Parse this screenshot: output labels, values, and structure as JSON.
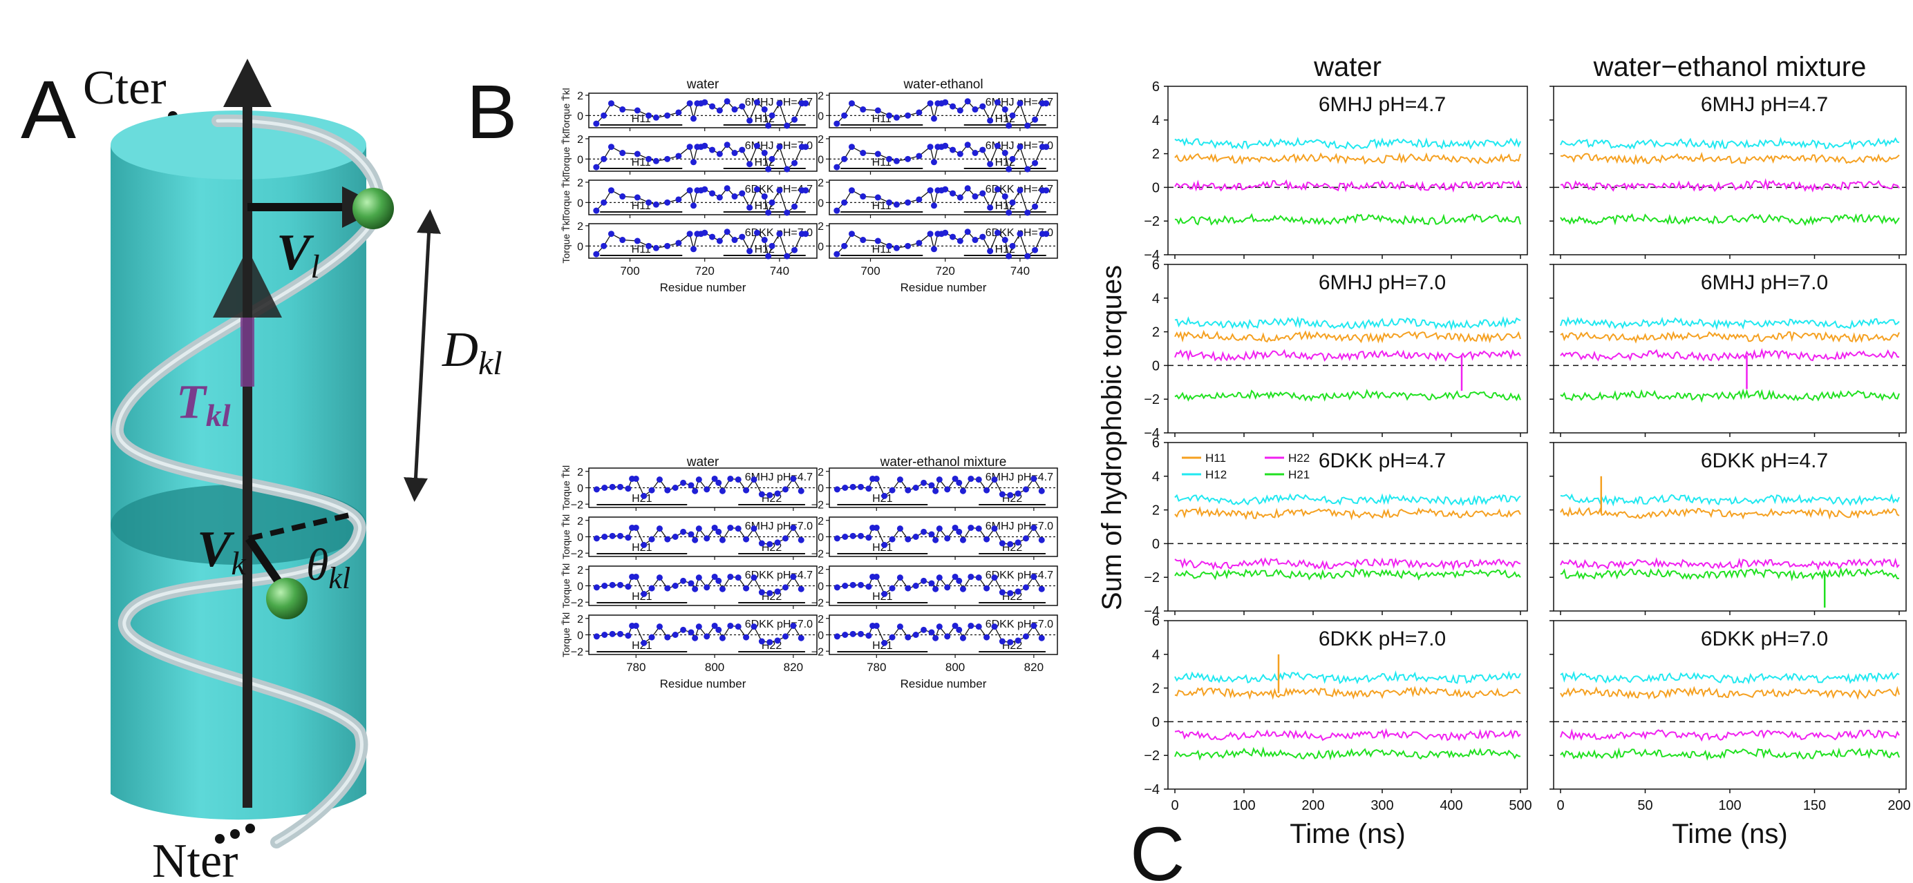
{
  "panel_labels": {
    "a": "A",
    "b": "B",
    "c": "C"
  },
  "helix": {
    "cter": "Cter",
    "nter": "Nter",
    "vl": "V",
    "vl_sub": "l",
    "vk": "V",
    "vk_sub": "k",
    "tkl": "T",
    "tkl_sub": "kl",
    "dkl": "D",
    "dkl_sub": "kl",
    "theta": "θ",
    "theta_sub": "kl",
    "colors": {
      "cylinder": "#45c8c8",
      "cylinder_dark": "#2aa4a4",
      "axis": "#222222",
      "torque": "#7a3c8c",
      "atom": "#3f9a3f",
      "ribbon": "#c9d6da"
    }
  },
  "panel_b": {
    "top": {
      "col_titles": [
        "water",
        "water-ethanol"
      ],
      "ylabel": "Torque T̄kl",
      "xlabel": "Residue number",
      "xticks": [
        "700",
        "720",
        "740"
      ],
      "yticks": [
        "2",
        "0"
      ],
      "helix_labels": [
        "H11",
        "H12"
      ],
      "rows": [
        "6MHJ pH=4.7",
        "6MHJ pH=7.0",
        "6DKK pH=4.7",
        "6DKK pH=7.0"
      ]
    },
    "bottom": {
      "col_titles": [
        "water",
        "water-ethanol mixture"
      ],
      "ylabel": "Torque T̄kl",
      "xlabel": "Residue number",
      "xticks": [
        "780",
        "800",
        "820"
      ],
      "yticks": [
        "2",
        "0",
        "−2"
      ],
      "helix_labels": [
        "H21",
        "H22"
      ],
      "rows": [
        "6MHJ pH=4.7",
        "6MHJ pH=7.0",
        "6DKK pH=4.7",
        "6DKK pH=7.0"
      ]
    },
    "marker_color": "#1f1fd6"
  },
  "chart_data": [
    {
      "type": "line",
      "panel": "B-top",
      "xlabel": "Residue number",
      "ylabel": "Torque T̄kl",
      "xlim": [
        689,
        750
      ],
      "ylim": [
        -1.2,
        2.2
      ],
      "x": [
        691,
        693,
        695,
        698,
        702,
        705,
        707,
        710,
        713,
        716,
        717,
        718,
        719,
        720,
        722,
        724,
        726,
        728,
        730,
        732,
        734,
        736,
        737,
        738,
        740,
        742,
        744,
        746,
        747
      ],
      "values": [
        -0.8,
        0.0,
        1.2,
        0.6,
        0.5,
        0.0,
        -0.2,
        0.0,
        0.3,
        1.2,
        -0.3,
        1.2,
        1.2,
        1.3,
        0.9,
        0.5,
        1.4,
        0.6,
        0.9,
        -0.5,
        1.3,
        0.6,
        -1.0,
        0.0,
        1.2,
        -1.0,
        -0.4,
        1.2,
        1.2
      ],
      "segments": [
        {
          "name": "H11",
          "x": [
            692,
            714
          ]
        },
        {
          "name": "H12",
          "x": [
            725,
            747
          ]
        }
      ],
      "panels": [
        [
          "water",
          "6MHJ pH=4.7"
        ],
        [
          "water-ethanol",
          "6MHJ pH=4.7"
        ],
        [
          "water",
          "6MHJ pH=7.0"
        ],
        [
          "water-ethanol",
          "6MHJ pH=7.0"
        ],
        [
          "water",
          "6DKK pH=4.7"
        ],
        [
          "water-ethanol",
          "6DKK pH=4.7"
        ],
        [
          "water",
          "6DKK pH=7.0"
        ],
        [
          "water-ethanol",
          "6DKK pH=7.0"
        ]
      ]
    },
    {
      "type": "line",
      "panel": "B-bottom",
      "xlabel": "Residue number",
      "ylabel": "Torque T̄kl",
      "xlim": [
        768,
        826
      ],
      "ylim": [
        -2.4,
        2.4
      ],
      "x": [
        770,
        772,
        774,
        776,
        778,
        779,
        780,
        782,
        784,
        786,
        788,
        790,
        792,
        794,
        795,
        796,
        798,
        800,
        801,
        802,
        804,
        806,
        808,
        810,
        812,
        814,
        816,
        818,
        820,
        822
      ],
      "values": [
        -0.2,
        0.0,
        0.1,
        0.1,
        -0.1,
        1.1,
        1.1,
        -1.0,
        -0.3,
        1.0,
        -0.3,
        0.0,
        0.6,
        0.3,
        -0.4,
        1.0,
        -0.2,
        1.1,
        0.6,
        -0.4,
        1.1,
        1.0,
        -0.3,
        1.0,
        -0.8,
        -0.9,
        -0.7,
        -0.2,
        1.1,
        -0.4
      ],
      "segments": [
        {
          "name": "H21",
          "x": [
            770,
            793
          ]
        },
        {
          "name": "H22",
          "x": [
            806,
            823
          ]
        }
      ],
      "panels": [
        [
          "water",
          "6MHJ pH=4.7"
        ],
        [
          "water-ethanol mixture",
          "6MHJ pH=4.7"
        ],
        [
          "water",
          "6MHJ pH=7.0"
        ],
        [
          "water-ethanol mixture",
          "6MHJ pH=7.0"
        ],
        [
          "water",
          "6DKK pH=4.7"
        ],
        [
          "water-ethanol mixture",
          "6DKK pH=4.7"
        ],
        [
          "water",
          "6DKK pH=7.0"
        ],
        [
          "water-ethanol mixture",
          "6DKK pH=7.0"
        ]
      ]
    },
    {
      "type": "line",
      "panel": "C",
      "col_titles": [
        "water",
        "water−ethanol mixture"
      ],
      "ylabel": "Sum of hydrophobic torques",
      "xlabel": "Time (ns)",
      "ylim": [
        -4,
        6
      ],
      "yticks": [
        "6",
        "4",
        "2",
        "0",
        "−2",
        "−4"
      ],
      "columns": [
        {
          "title": "water",
          "xlim": [
            0,
            500
          ],
          "xticks": [
            "0",
            "100",
            "200",
            "300",
            "400",
            "500"
          ]
        },
        {
          "title": "water−ethanol mixture",
          "xlim": [
            0,
            200
          ],
          "xticks": [
            "0",
            "50",
            "100",
            "150",
            "200"
          ]
        }
      ],
      "rows": [
        {
          "label": "6MHJ pH=4.7",
          "means": {
            "H11": 1.7,
            "H12": 2.6,
            "H22": 0.1,
            "H21": -1.9
          }
        },
        {
          "label": "6MHJ pH=7.0",
          "means": {
            "H11": 1.7,
            "H12": 2.5,
            "H22": 0.6,
            "H21": -1.8
          }
        },
        {
          "label": "6DKK pH=4.7",
          "means": {
            "H11": 1.8,
            "H12": 2.6,
            "H22": -1.2,
            "H21": -1.8
          }
        },
        {
          "label": "6DKK pH=7.0",
          "means": {
            "H11": 1.7,
            "H12": 2.6,
            "H22": -0.8,
            "H21": -1.9
          }
        }
      ],
      "series": [
        {
          "name": "H11",
          "color": "#f5a020"
        },
        {
          "name": "H12",
          "color": "#20e8f0"
        },
        {
          "name": "H22",
          "color": "#f020f0"
        },
        {
          "name": "H21",
          "color": "#20e020"
        }
      ],
      "legend_panel": "6DKK pH=4.7 (water)",
      "legend_loc": "top-left",
      "zero_line": "dashed"
    }
  ]
}
